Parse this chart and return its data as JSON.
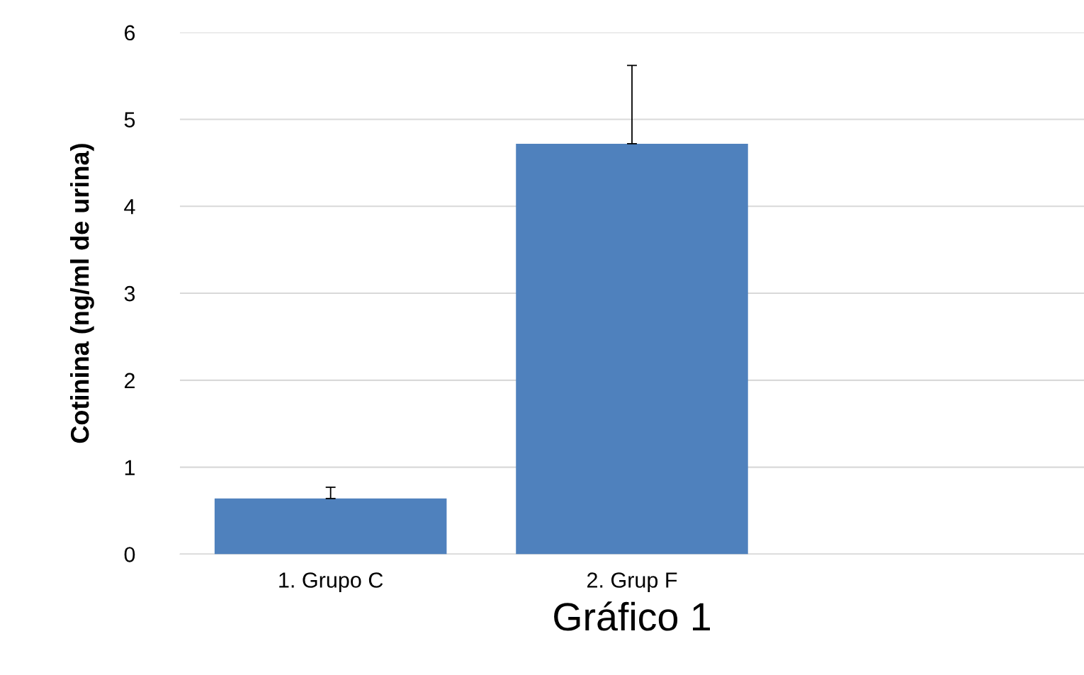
{
  "chart_data": {
    "type": "bar",
    "xlabel": "Gráfico 1",
    "ylabel": "Cotinina (ng/ml de urina)",
    "categories": [
      "1. Grupo C",
      "2. Grup F",
      null
    ],
    "values": [
      0.64,
      4.72,
      null
    ],
    "errors": [
      0.13,
      0.9,
      null
    ],
    "color": "#4f81bd",
    "ylim": [
      0,
      6
    ],
    "yticks": [
      0,
      1,
      2,
      3,
      4,
      5,
      6
    ],
    "grid": "y"
  }
}
